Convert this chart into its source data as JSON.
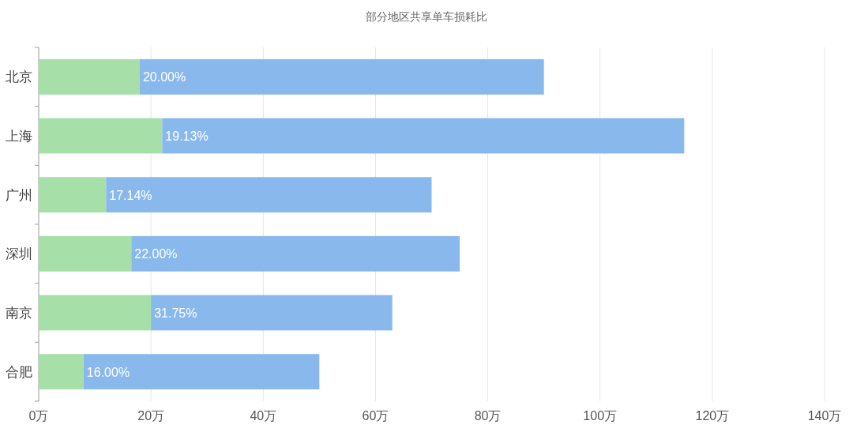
{
  "chart_data": {
    "type": "bar",
    "orientation": "horizontal",
    "stacked": true,
    "title": "部分地区共享单车损耗比",
    "categories": [
      "北京",
      "上海",
      "广州",
      "深圳",
      "南京",
      "合肥"
    ],
    "series": [
      {
        "color": "#a6e0a8",
        "values": [
          18,
          22,
          12,
          16.5,
          20,
          8
        ]
      },
      {
        "color": "#89b9ec",
        "values": [
          72,
          93,
          58,
          58.5,
          43,
          42
        ]
      }
    ],
    "annotations": [
      {
        "text": "20.00%",
        "x": 18,
        "y": "北京"
      },
      {
        "text": "19.13%",
        "x": 22,
        "y": "上海"
      },
      {
        "text": "17.14%",
        "x": 12,
        "y": "广州"
      },
      {
        "text": "22.00%",
        "x": 16.5,
        "y": "深圳"
      },
      {
        "text": "31.75%",
        "x": 20,
        "y": "南京"
      },
      {
        "text": "16.00%",
        "x": 8,
        "y": "合肥"
      }
    ],
    "xlim": [
      0,
      140
    ],
    "xticks": [
      {
        "value": 0,
        "label": "0万"
      },
      {
        "value": 20,
        "label": "20万"
      },
      {
        "value": 40,
        "label": "40万"
      },
      {
        "value": 60,
        "label": "60万"
      },
      {
        "value": 80,
        "label": "80万"
      },
      {
        "value": 100,
        "label": "100万"
      },
      {
        "value": 120,
        "label": "120万"
      },
      {
        "value": 140,
        "label": "140万"
      }
    ],
    "grid": "x"
  }
}
